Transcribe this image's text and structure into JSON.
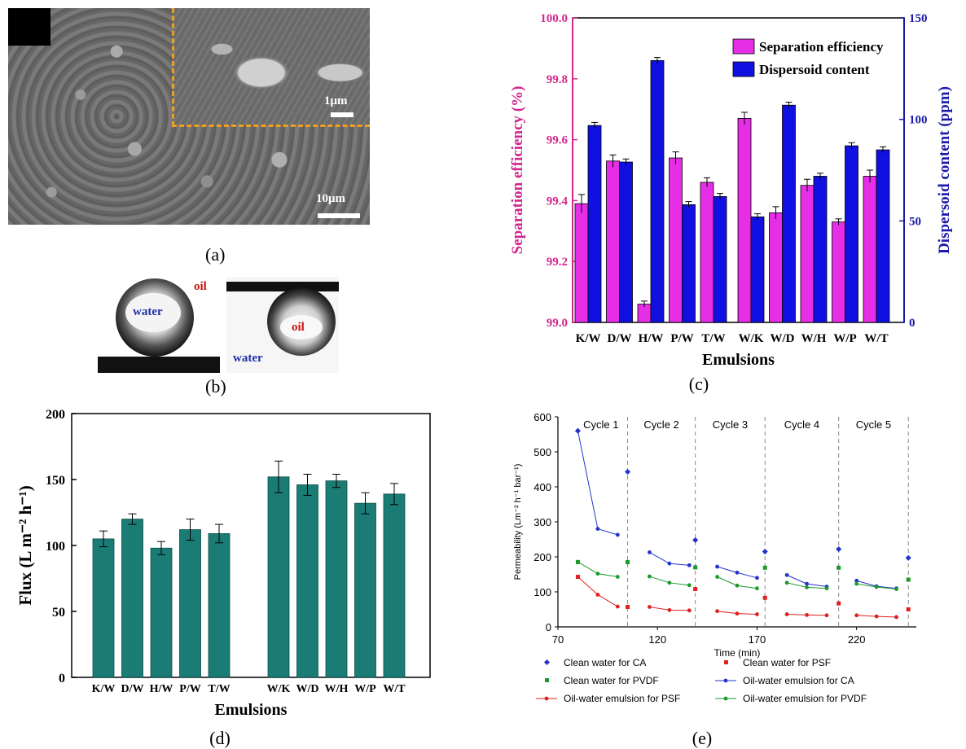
{
  "panels": {
    "a": {
      "label": "(a)",
      "scale_small": "1μm",
      "scale_large": "10μm"
    },
    "b": {
      "label": "(b)",
      "left_drop_text": "water",
      "left_env_text": "oil",
      "right_drop_text": "oil",
      "right_env_text": "water"
    },
    "c": {
      "label": "(c)"
    },
    "d": {
      "label": "(d)"
    },
    "e": {
      "label": "(e)"
    }
  },
  "colors": {
    "magenta": "#e62ee6",
    "blue": "#1010e0",
    "teal": "#1a7c74",
    "sem_border": "#f0a020",
    "red_text": "#cc1111",
    "blue_text": "#1a33aa",
    "c_left_axis": "#d3268e",
    "c_right_axis": "#1a1aa8",
    "e_ca": "#2233cc",
    "e_pvdf": "#1a9a2a",
    "e_psf": "#e02020"
  },
  "chart_data": [
    {
      "id": "c",
      "type": "bar",
      "xlabel": "Emulsions",
      "ylabel": "Separation efficiency (%)",
      "ylabel_right": "Dispersoid content (ppm)",
      "categories": [
        "K/W",
        "D/W",
        "H/W",
        "P/W",
        "T/W",
        "W/K",
        "W/D",
        "W/H",
        "W/P",
        "W/T"
      ],
      "ylim": [
        99.0,
        100.0
      ],
      "ylim_right": [
        0,
        150
      ],
      "yticks": [
        "99.0",
        "99.2",
        "99.4",
        "99.6",
        "99.8",
        "100.0"
      ],
      "yticks_right": [
        "0",
        "50",
        "100",
        "150"
      ],
      "legend_position": "top-right",
      "series": [
        {
          "name": "Separation efficiency",
          "axis": "left",
          "color": "#e62ee6",
          "values": [
            99.39,
            99.53,
            99.06,
            99.54,
            99.46,
            99.67,
            99.36,
            99.45,
            99.33,
            99.48
          ],
          "errors": [
            0.03,
            0.02,
            0.01,
            0.02,
            0.015,
            0.02,
            0.02,
            0.02,
            0.01,
            0.02
          ]
        },
        {
          "name": "Dispersoid content",
          "axis": "right",
          "color": "#1010e0",
          "values": [
            97,
            79,
            129,
            58,
            62,
            52,
            107,
            72,
            87,
            85
          ],
          "errors": [
            1.5,
            1.5,
            1.5,
            1.5,
            1.5,
            1.5,
            1.5,
            1.5,
            1.5,
            1.5
          ]
        }
      ]
    },
    {
      "id": "d",
      "type": "bar",
      "xlabel": "Emulsions",
      "ylabel": "Flux (L m⁻² h⁻¹)",
      "categories": [
        "K/W",
        "D/W",
        "H/W",
        "P/W",
        "T/W",
        "W/K",
        "W/D",
        "W/H",
        "W/P",
        "W/T"
      ],
      "ylim": [
        0,
        200
      ],
      "yticks": [
        "0",
        "50",
        "100",
        "150",
        "200"
      ],
      "series": [
        {
          "color": "#1a7c74",
          "values": [
            105,
            120,
            98,
            112,
            109,
            152,
            146,
            149,
            132,
            139
          ],
          "errors": [
            6,
            4,
            5,
            8,
            7,
            12,
            8,
            5,
            8,
            8
          ]
        }
      ]
    },
    {
      "id": "e",
      "type": "scatter",
      "xlabel": "Time (min)",
      "ylabel": "Permeability (Lm⁻² h⁻¹ bar⁻¹)",
      "xlim": [
        70,
        250
      ],
      "ylim": [
        0,
        600
      ],
      "xticks": [
        "70",
        "120",
        "170",
        "220"
      ],
      "yticks": [
        "0",
        "100",
        "200",
        "300",
        "400",
        "500",
        "600"
      ],
      "cycle_labels": [
        "Cycle 1",
        "Cycle 2",
        "Cycle 3",
        "Cycle 4",
        "Cycle 5"
      ],
      "cycle_boundaries": [
        105,
        139,
        174,
        211,
        246
      ],
      "series": [
        {
          "name": "Clean water for CA",
          "style": "point",
          "color": "#2233cc",
          "x": [
            80,
            105,
            139,
            174,
            211,
            246
          ],
          "y": [
            560,
            443,
            248,
            215,
            222,
            197
          ]
        },
        {
          "name": "Clean water for PSF",
          "style": "point",
          "color": "#e02020",
          "x": [
            80,
            105,
            139,
            174,
            211,
            246
          ],
          "y": [
            143,
            57,
            108,
            83,
            67,
            50
          ]
        },
        {
          "name": "Clean water for PVDF",
          "style": "point",
          "color": "#1a9a2a",
          "x": [
            80,
            105,
            139,
            174,
            211,
            246
          ],
          "y": [
            185,
            185,
            170,
            169,
            169,
            135
          ]
        },
        {
          "name": "Oil-water emulsion for CA",
          "style": "line",
          "color": "#2233cc",
          "segments": [
            {
              "x": [
                80,
                90,
                100
              ],
              "y": [
                560,
                280,
                263
              ]
            },
            {
              "x": [
                116,
                126,
                136
              ],
              "y": [
                213,
                181,
                176
              ]
            },
            {
              "x": [
                150,
                160,
                170
              ],
              "y": [
                172,
                155,
                140
              ]
            },
            {
              "x": [
                185,
                195,
                205
              ],
              "y": [
                148,
                123,
                115
              ]
            },
            {
              "x": [
                220,
                230,
                240
              ],
              "y": [
                132,
                116,
                110
              ]
            }
          ]
        },
        {
          "name": "Oil-water emulsion for PSF",
          "style": "line",
          "color": "#e02020",
          "segments": [
            {
              "x": [
                80,
                90,
                100
              ],
              "y": [
                143,
                92,
                58
              ]
            },
            {
              "x": [
                116,
                126,
                136
              ],
              "y": [
                57,
                48,
                47
              ]
            },
            {
              "x": [
                150,
                160,
                170
              ],
              "y": [
                45,
                38,
                36
              ]
            },
            {
              "x": [
                185,
                195,
                205
              ],
              "y": [
                36,
                34,
                33
              ]
            },
            {
              "x": [
                220,
                230,
                240
              ],
              "y": [
                33,
                30,
                28
              ]
            }
          ]
        },
        {
          "name": "Oil-water emulsion for PVDF",
          "style": "line",
          "color": "#1a9a2a",
          "segments": [
            {
              "x": [
                80,
                90,
                100
              ],
              "y": [
                186,
                152,
                143
              ]
            },
            {
              "x": [
                116,
                126,
                136
              ],
              "y": [
                144,
                126,
                119
              ]
            },
            {
              "x": [
                150,
                160,
                170
              ],
              "y": [
                143,
                118,
                110
              ]
            },
            {
              "x": [
                185,
                195,
                205
              ],
              "y": [
                126,
                113,
                110
              ]
            },
            {
              "x": [
                220,
                230,
                240
              ],
              "y": [
                123,
                114,
                108
              ]
            }
          ]
        }
      ]
    }
  ]
}
